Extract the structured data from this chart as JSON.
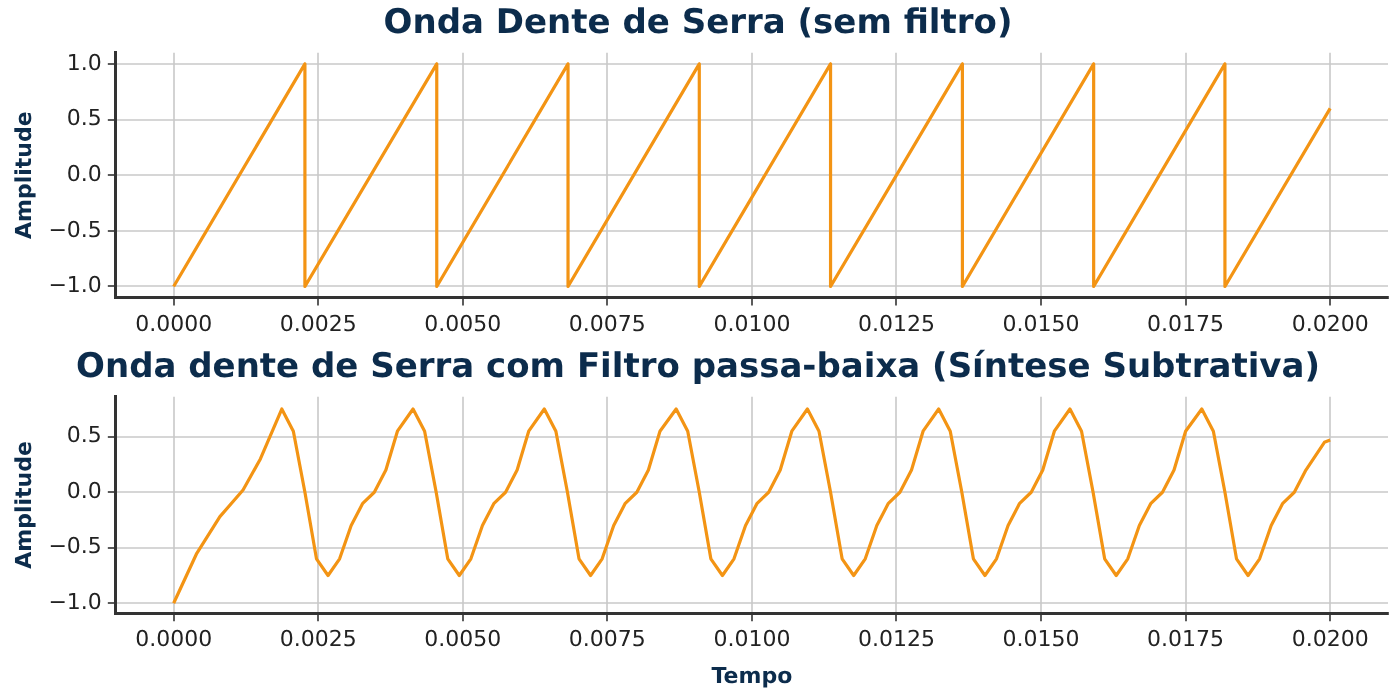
{
  "chart_data": [
    {
      "type": "line",
      "title": "Onda Dente de Serra (sem filtro)",
      "ylabel": "Amplitude",
      "xlim": [
        -0.001,
        0.021
      ],
      "ylim": [
        -1.1,
        1.1
      ],
      "xticks": [
        {
          "value": 0,
          "label": "0.0000"
        },
        {
          "value": 0.0025,
          "label": "0.0025"
        },
        {
          "value": 0.005,
          "label": "0.0050"
        },
        {
          "value": 0.0075,
          "label": "0.0075"
        },
        {
          "value": 0.01,
          "label": "0.0100"
        },
        {
          "value": 0.0125,
          "label": "0.0125"
        },
        {
          "value": 0.015,
          "label": "0.0150"
        },
        {
          "value": 0.0175,
          "label": "0.0175"
        },
        {
          "value": 0.02,
          "label": "0.0200"
        }
      ],
      "yticks": [
        {
          "value": -1,
          "label": "−1.0"
        },
        {
          "value": -0.5,
          "label": "−0.5"
        },
        {
          "value": 0,
          "label": "0.0"
        },
        {
          "value": 0.5,
          "label": "0.5"
        },
        {
          "value": 1,
          "label": "1.0"
        }
      ],
      "grid": true,
      "legend": false,
      "line_style": "solid",
      "marker": "none",
      "series": [
        {
          "color": "#f39414",
          "x": [
            0,
            0.00227,
            0.00227,
            0.00455,
            0.00455,
            0.00682,
            0.00682,
            0.00909,
            0.00909,
            0.01136,
            0.01136,
            0.01364,
            0.01364,
            0.01591,
            0.01591,
            0.01818,
            0.01818,
            0.02
          ],
          "values": [
            -1,
            1,
            -1,
            1,
            -1,
            1,
            -1,
            1,
            -1,
            1,
            -1,
            1,
            -1,
            1,
            -1,
            1,
            -1,
            0.6
          ]
        }
      ]
    },
    {
      "type": "line",
      "title": "Onda dente de Serra com Filtro passa-baixa (Síntese Subtrativa)",
      "xlabel": "Tempo",
      "ylabel": "Amplitude",
      "xlim": [
        -0.001,
        0.021
      ],
      "ylim": [
        -1.09,
        0.86
      ],
      "xticks": [
        {
          "value": 0,
          "label": "0.0000"
        },
        {
          "value": 0.0025,
          "label": "0.0025"
        },
        {
          "value": 0.005,
          "label": "0.0050"
        },
        {
          "value": 0.0075,
          "label": "0.0075"
        },
        {
          "value": 0.01,
          "label": "0.0100"
        },
        {
          "value": 0.0125,
          "label": "0.0125"
        },
        {
          "value": 0.015,
          "label": "0.0150"
        },
        {
          "value": 0.0175,
          "label": "0.0175"
        },
        {
          "value": 0.02,
          "label": "0.0200"
        }
      ],
      "yticks": [
        {
          "value": -1,
          "label": "−1.0"
        },
        {
          "value": -0.5,
          "label": "−0.5"
        },
        {
          "value": 0,
          "label": "0.0"
        },
        {
          "value": 0.5,
          "label": "0.5"
        }
      ],
      "grid": true,
      "legend": false,
      "line_style": "solid",
      "marker": "none",
      "series": [
        {
          "color": "#f39414",
          "x": [
            0,
            0.0004,
            0.0008,
            0.0012,
            0.0015,
            0.00187,
            0.00207,
            0.00227,
            0.00247,
            0.00267,
            0.00287,
            0.00307,
            0.00327,
            0.00347,
            0.00367,
            0.00387,
            0.00414,
            0.00434,
            0.00454,
            0.00474,
            0.00494,
            0.00514,
            0.00534,
            0.00554,
            0.00574,
            0.00594,
            0.00614,
            0.00641,
            0.00661,
            0.00681,
            0.00701,
            0.00721,
            0.00741,
            0.00761,
            0.00781,
            0.00801,
            0.00821,
            0.00841,
            0.00869,
            0.00889,
            0.00909,
            0.00929,
            0.00949,
            0.00969,
            0.00989,
            0.01009,
            0.01029,
            0.01049,
            0.01069,
            0.01096,
            0.01116,
            0.01136,
            0.01156,
            0.01176,
            0.01196,
            0.01216,
            0.01236,
            0.01256,
            0.01276,
            0.01296,
            0.01323,
            0.01343,
            0.01363,
            0.01383,
            0.01403,
            0.01423,
            0.01443,
            0.01463,
            0.01483,
            0.01503,
            0.01523,
            0.0155,
            0.0157,
            0.0159,
            0.0161,
            0.0163,
            0.0165,
            0.0167,
            0.0169,
            0.0171,
            0.0173,
            0.0175,
            0.01778,
            0.01798,
            0.01818,
            0.01838,
            0.01858,
            0.01878,
            0.01898,
            0.01918,
            0.01938,
            0.01958,
            0.0199,
            0.02
          ],
          "values": [
            -1,
            -0.55,
            -0.22,
            0.02,
            0.3,
            0.75,
            0.55,
            0,
            -0.6,
            -0.75,
            -0.6,
            -0.3,
            -0.1,
            0,
            0.2,
            0.55,
            0.75,
            0.55,
            0,
            -0.6,
            -0.75,
            -0.6,
            -0.3,
            -0.1,
            0,
            0.2,
            0.55,
            0.75,
            0.55,
            0,
            -0.6,
            -0.75,
            -0.6,
            -0.3,
            -0.1,
            0,
            0.2,
            0.55,
            0.75,
            0.55,
            0,
            -0.6,
            -0.75,
            -0.6,
            -0.3,
            -0.1,
            0,
            0.2,
            0.55,
            0.75,
            0.55,
            0,
            -0.6,
            -0.75,
            -0.6,
            -0.3,
            -0.1,
            0,
            0.2,
            0.55,
            0.75,
            0.55,
            0,
            -0.6,
            -0.75,
            -0.6,
            -0.3,
            -0.1,
            0,
            0.2,
            0.55,
            0.75,
            0.55,
            0,
            -0.6,
            -0.75,
            -0.6,
            -0.3,
            -0.1,
            0,
            0.2,
            0.55,
            0.75,
            0.55,
            0,
            -0.6,
            -0.75,
            -0.6,
            -0.3,
            -0.1,
            0,
            0.2,
            0.45,
            0.47
          ]
        }
      ]
    }
  ]
}
